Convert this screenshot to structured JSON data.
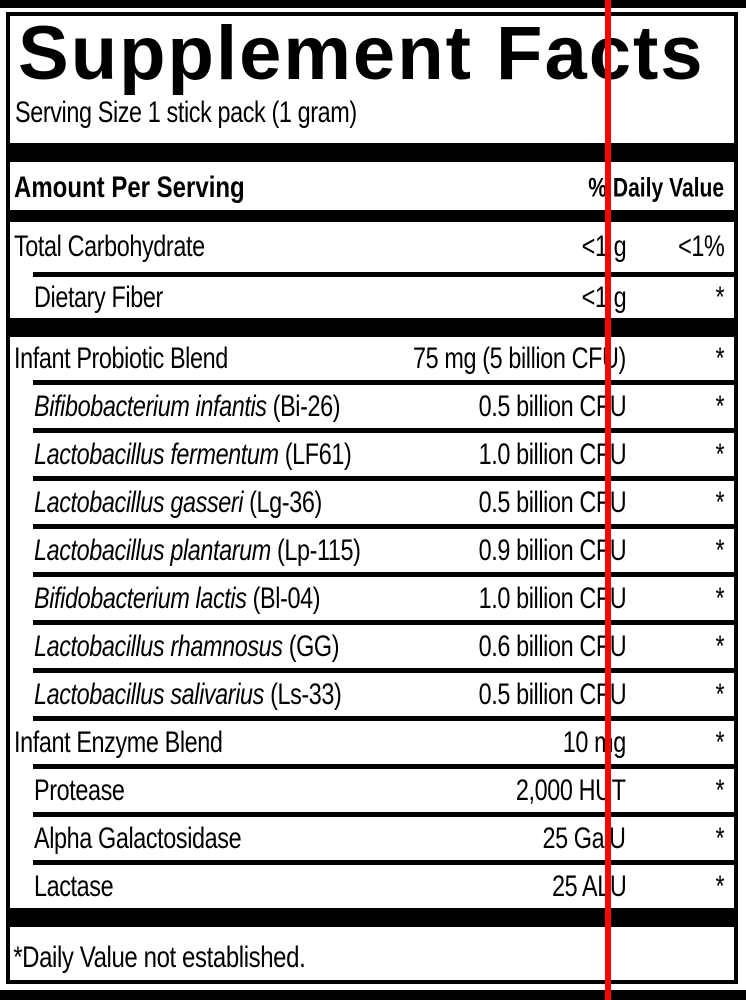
{
  "label": {
    "title": "Supplement Facts",
    "serving_size": "Serving Size 1 stick pack (1 gram)",
    "column_headers": {
      "left": "Amount Per Serving",
      "right": "% Daily Value"
    },
    "footnote": "*Daily Value not established."
  },
  "rows": [
    {
      "name_plain": "Total Carbohydrate",
      "amount": "<1 g",
      "dv": "<1%"
    },
    {
      "name_plain": "Dietary Fiber",
      "amount": "<1 g",
      "dv": "*"
    },
    {
      "name_plain": "Infant Probiotic Blend",
      "amount": "75 mg (5 billion CFU)",
      "dv": "*"
    },
    {
      "name_italic": "Bifibobacterium infantis",
      "name_plain": " (Bi-26)",
      "amount": "0.5 billion CFU",
      "dv": "*"
    },
    {
      "name_italic": "Lactobacillus fermentum",
      "name_plain": " (LF61)",
      "amount": "1.0 billion CFU",
      "dv": "*"
    },
    {
      "name_italic": "Lactobacillus gasseri",
      "name_plain": " (Lg-36)",
      "amount": "0.5 billion CFU",
      "dv": "*"
    },
    {
      "name_italic": "Lactobacillus plantarum",
      "name_plain": " (Lp-115)",
      "amount": "0.9 billion CFU",
      "dv": "*"
    },
    {
      "name_italic": "Bifidobacterium lactis",
      "name_plain": " (Bl-04)",
      "amount": "1.0 billion CFU",
      "dv": "*"
    },
    {
      "name_italic": "Lactobacillus rhamnosus",
      "name_plain": " (GG)",
      "amount": "0.6 billion CFU",
      "dv": "*"
    },
    {
      "name_italic": "Lactobacillus salivarius",
      "name_plain": " (Ls-33)",
      "amount": "0.5 billion CFU",
      "dv": "*"
    },
    {
      "name_plain": "Infant Enzyme Blend",
      "amount": "10 mg",
      "dv": "*"
    },
    {
      "name_plain": "Protease",
      "amount": "2,000 HUT",
      "dv": "*"
    },
    {
      "name_plain": "Alpha Galactosidase",
      "amount": "25 GalU",
      "dv": "*"
    },
    {
      "name_plain": "Lactase",
      "amount": "25 ALU",
      "dv": "*"
    }
  ],
  "annotation": {
    "line_color": "#ff0000"
  },
  "colors": {
    "text": "#000000",
    "background": "#ffffff"
  }
}
